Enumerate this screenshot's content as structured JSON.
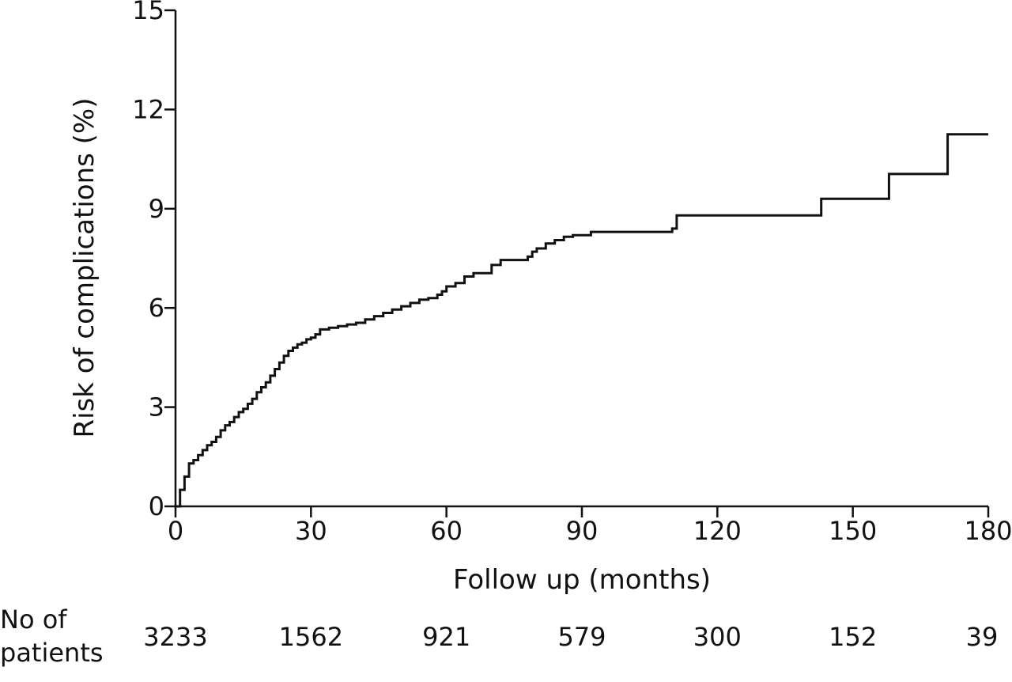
{
  "chart_data": {
    "type": "line",
    "title": "",
    "xlabel": "Follow up (months)",
    "ylabel": "Risk of complications (%)",
    "xlim": [
      0,
      180
    ],
    "ylim": [
      0,
      15
    ],
    "x_ticks": [
      "0",
      "30",
      "60",
      "90",
      "120",
      "150",
      "180"
    ],
    "y_ticks": [
      "0",
      "3",
      "6",
      "9",
      "12",
      "15"
    ],
    "grid": false,
    "legend": "none",
    "series": [
      {
        "step": true,
        "x": [
          0,
          1,
          2,
          3,
          4,
          5,
          6,
          7,
          8,
          9,
          10,
          11,
          12,
          13,
          14,
          15,
          16,
          17,
          18,
          19,
          20,
          21,
          22,
          23,
          24,
          25,
          26,
          27,
          28,
          29,
          30,
          31,
          32,
          34,
          36,
          38,
          40,
          42,
          44,
          46,
          48,
          50,
          52,
          54,
          56,
          58,
          59,
          60,
          62,
          64,
          66,
          70,
          72,
          78,
          79,
          80,
          82,
          84,
          86,
          88,
          92,
          110,
          111,
          143,
          158,
          171,
          180
        ],
        "y": [
          0,
          0.5,
          0.9,
          1.3,
          1.4,
          1.55,
          1.7,
          1.85,
          1.95,
          2.1,
          2.3,
          2.45,
          2.55,
          2.7,
          2.85,
          2.95,
          3.1,
          3.25,
          3.45,
          3.6,
          3.75,
          3.95,
          4.15,
          4.35,
          4.55,
          4.7,
          4.8,
          4.9,
          4.95,
          5.05,
          5.1,
          5.2,
          5.35,
          5.4,
          5.45,
          5.5,
          5.55,
          5.65,
          5.75,
          5.85,
          5.95,
          6.05,
          6.15,
          6.25,
          6.3,
          6.4,
          6.5,
          6.65,
          6.75,
          6.95,
          7.05,
          7.3,
          7.45,
          7.55,
          7.7,
          7.8,
          7.95,
          8.05,
          8.15,
          8.2,
          8.3,
          8.4,
          8.8,
          9.3,
          10.05,
          11.25,
          11.25
        ]
      }
    ]
  },
  "risk_table": {
    "label_line1": "No of",
    "label_line2": "patients",
    "values": [
      "3233",
      "1562",
      "921",
      "579",
      "300",
      "152",
      "39"
    ]
  }
}
